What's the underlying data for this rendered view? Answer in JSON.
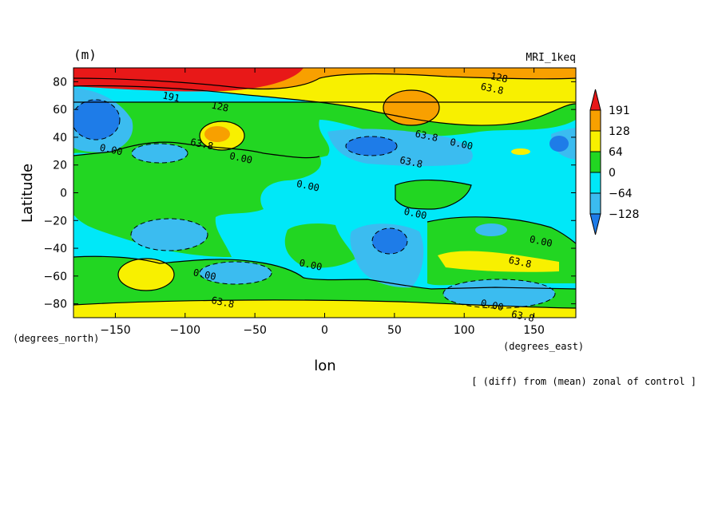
{
  "chart_data": {
    "type": "contour",
    "unit_label": "(m)",
    "title_right": "MRI_1keq",
    "xlabel": "lon",
    "ylabel": "Latitude",
    "x_unit": "(degrees_east)",
    "y_unit": "(degrees_north)",
    "note": "[ (diff) from (mean) zonal of control ]",
    "xlim": [
      -180,
      180
    ],
    "ylim": [
      -90,
      90
    ],
    "x_ticks": [
      -150,
      -100,
      -50,
      0,
      50,
      100,
      150
    ],
    "y_ticks": [
      -80,
      -60,
      -40,
      -20,
      0,
      20,
      40,
      60,
      80
    ],
    "x_tick_labels": [
      "−150",
      "−100",
      "−50",
      "0",
      "50",
      "100",
      "150"
    ],
    "y_tick_labels": [
      "−80",
      "−60",
      "−40",
      "−20",
      "0",
      "20",
      "40",
      "60",
      "80"
    ],
    "colorbar": {
      "levels": [
        -128,
        -64,
        0,
        64,
        128,
        191
      ],
      "level_labels": [
        "−128",
        "−64",
        "0",
        "64",
        "128",
        "191"
      ],
      "colors": [
        "#1e7ce8",
        "#3bbcf0",
        "#00e8f8",
        "#22d622",
        "#f8f000",
        "#f8a000",
        "#e81818"
      ]
    },
    "contour_labels": [
      {
        "text": "191",
        "lon": -110,
        "lat": 69
      },
      {
        "text": "128",
        "lon": -75,
        "lat": 62
      },
      {
        "text": "128",
        "lon": 125,
        "lat": 83
      },
      {
        "text": "63.8",
        "lon": 120,
        "lat": 75
      },
      {
        "text": "63.8",
        "lon": -88,
        "lat": 35
      },
      {
        "text": "0.00",
        "lon": -60,
        "lat": 25
      },
      {
        "text": "0.00",
        "lon": -153,
        "lat": 31
      },
      {
        "text": "63.8",
        "lon": 73,
        "lat": 41
      },
      {
        "text": "0.00",
        "lon": 98,
        "lat": 35
      },
      {
        "text": "63.8",
        "lon": 62,
        "lat": 22
      },
      {
        "text": "0.00",
        "lon": -12,
        "lat": 5
      },
      {
        "text": "0.00",
        "lon": 65,
        "lat": -15
      },
      {
        "text": "0.00",
        "lon": 155,
        "lat": -35
      },
      {
        "text": "63.8",
        "lon": 140,
        "lat": -50
      },
      {
        "text": "0.00",
        "lon": -10,
        "lat": -52
      },
      {
        "text": "0.00",
        "lon": -86,
        "lat": -59
      },
      {
        "text": "63.8",
        "lon": -73,
        "lat": -79
      },
      {
        "text": "0.00",
        "lon": 120,
        "lat": -81
      },
      {
        "text": "63.8",
        "lon": 142,
        "lat": -89
      }
    ]
  }
}
